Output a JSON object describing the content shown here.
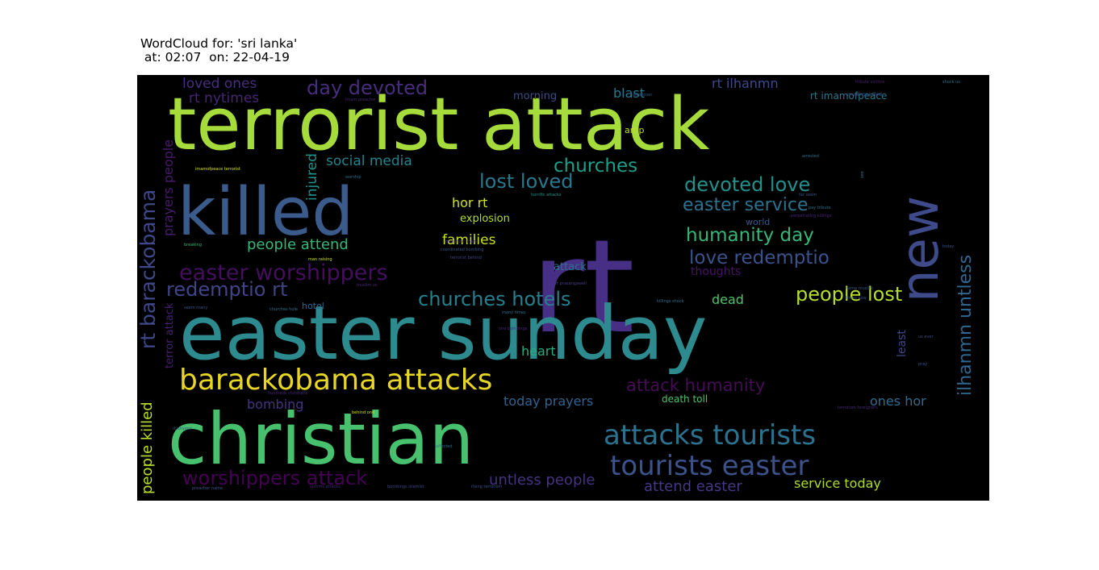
{
  "title_line1": "WordCloud for: 'sri lanka'",
  "title_line2": " at: 02:07  on: 22-04-19",
  "chart_data": {
    "type": "wordcloud",
    "background": "#000000",
    "words": [
      {
        "text": "terrorist attack",
        "color": "#a6db3c",
        "weight": 100
      },
      {
        "text": "rt",
        "color": "#482f86",
        "weight": 98
      },
      {
        "text": "easter sunday",
        "color": "#2d8a8e",
        "weight": 92
      },
      {
        "text": "christian",
        "color": "#47c16e",
        "weight": 85
      },
      {
        "text": "killed",
        "color": "#3b5b8d",
        "weight": 80
      },
      {
        "text": "new",
        "color": "#3e4a89",
        "weight": 70
      },
      {
        "text": "barackobama attacks",
        "color": "#e8d624",
        "weight": 45
      },
      {
        "text": "attacks tourists",
        "color": "#2c728e",
        "weight": 42
      },
      {
        "text": "tourists easter",
        "color": "#3b528b",
        "weight": 40
      },
      {
        "text": "easter worshippers",
        "color": "#440f5c",
        "weight": 38
      },
      {
        "text": "rt barackobama",
        "color": "#3f4889",
        "weight": 34
      },
      {
        "text": "ilhanmn untless",
        "color": "#31668e",
        "weight": 30
      },
      {
        "text": "worshippers attack",
        "color": "#440154",
        "weight": 28
      },
      {
        "text": "churches hotels",
        "color": "#277f8e",
        "weight": 28
      },
      {
        "text": "devoted love",
        "color": "#21918c",
        "weight": 27
      },
      {
        "text": "lost loved",
        "color": "#2a788e",
        "weight": 27
      },
      {
        "text": "people lost",
        "color": "#b5de2b",
        "weight": 26
      },
      {
        "text": "day devoted",
        "color": "#472d7b",
        "weight": 26
      },
      {
        "text": "redemptio rt",
        "color": "#414487",
        "weight": 26
      },
      {
        "text": "churches",
        "color": "#1f9e89",
        "weight": 24
      },
      {
        "text": "humanity day",
        "color": "#35b779",
        "weight": 24
      },
      {
        "text": "love redemptio",
        "color": "#3b528b",
        "weight": 24
      },
      {
        "text": "easter service",
        "color": "#2c728e",
        "weight": 23
      },
      {
        "text": "attack humanity",
        "color": "#450d54",
        "weight": 22
      },
      {
        "text": "people attend",
        "color": "#35b779",
        "weight": 20
      },
      {
        "text": "people killed",
        "color": "#b8de29",
        "weight": 20
      },
      {
        "text": "untless people",
        "color": "#46327e",
        "weight": 19
      },
      {
        "text": "attend easter",
        "color": "#443983",
        "weight": 19
      },
      {
        "text": "loved ones",
        "color": "#472f7d",
        "weight": 17
      },
      {
        "text": "social media",
        "color": "#26828e",
        "weight": 17
      },
      {
        "text": "families",
        "color": "#cae11f",
        "weight": 17
      },
      {
        "text": "rt nytimes",
        "color": "#482575",
        "weight": 17
      },
      {
        "text": "injured",
        "color": "#1f968b",
        "weight": 17
      },
      {
        "text": "rt ilhanmn",
        "color": "#3e4989",
        "weight": 16
      },
      {
        "text": "prayers people",
        "color": "#481b6d",
        "weight": 16
      },
      {
        "text": "service today",
        "color": "#addc30",
        "weight": 16
      },
      {
        "text": "today prayers",
        "color": "#33638d",
        "weight": 16
      },
      {
        "text": "blast",
        "color": "#2a768e",
        "weight": 16
      },
      {
        "text": "hor rt",
        "color": "#d2e21b",
        "weight": 15
      },
      {
        "text": "bombing",
        "color": "#463480",
        "weight": 15
      },
      {
        "text": "heart",
        "color": "#27ad81",
        "weight": 15
      },
      {
        "text": "dead",
        "color": "#4ec36b",
        "weight": 15
      },
      {
        "text": "ones hor",
        "color": "#2f6c8e",
        "weight": 15
      },
      {
        "text": "least",
        "color": "#3f4788",
        "weight": 14
      },
      {
        "text": "thoughts",
        "color": "#471365",
        "weight": 14
      },
      {
        "text": "terror attack",
        "color": "#481f70",
        "weight": 13
      },
      {
        "text": "explosion",
        "color": "#addc30",
        "weight": 13
      },
      {
        "text": "attack",
        "color": "#2c718e",
        "weight": 13
      },
      {
        "text": "morning",
        "color": "#3d4d8a",
        "weight": 13
      },
      {
        "text": "death toll",
        "color": "#4ac16d",
        "weight": 12
      },
      {
        "text": "rt imamofpeace",
        "color": "#2a768e",
        "weight": 12
      },
      {
        "text": "hotel",
        "color": "#31678e",
        "weight": 11
      },
      {
        "text": "amp",
        "color": "#bddf26",
        "weight": 11
      },
      {
        "text": "world",
        "color": "#375b8d",
        "weight": 11
      },
      {
        "text": "muslims killed",
        "color": "#3a548c",
        "weight": 6
      },
      {
        "text": "tribute victims",
        "color": "#482173",
        "weight": 5
      },
      {
        "text": "shock us",
        "color": "#2d718e",
        "weight": 5
      },
      {
        "text": "imam preacher",
        "color": "#482576",
        "weight": 5
      },
      {
        "text": "wife lover",
        "color": "#3a548c",
        "weight": 5
      },
      {
        "text": "imamofpeace terrorist",
        "color": "#d5e21a",
        "weight": 5
      },
      {
        "text": "worship",
        "color": "#2e6e8e",
        "weight": 5
      },
      {
        "text": "breaking",
        "color": "#35b779",
        "weight": 5
      },
      {
        "text": "horrific attacks",
        "color": "#1f998a",
        "weight": 5
      },
      {
        "text": "far seem",
        "color": "#3b528b",
        "weight": 5
      },
      {
        "text": "perpetrating killings",
        "color": "#482878",
        "weight": 5
      },
      {
        "text": "pay tribute",
        "color": "#2d708e",
        "weight": 5
      },
      {
        "text": "arrested",
        "color": "#2e6e8e",
        "weight": 5
      },
      {
        "text": "see",
        "color": "#2a788e",
        "weight": 5
      },
      {
        "text": "mckenzie imam",
        "color": "#482878",
        "weight": 5
      },
      {
        "text": "coordinated bombing",
        "color": "#3b528b",
        "weight": 5
      },
      {
        "text": "terrorist behind",
        "color": "#3f4788",
        "weight": 5
      },
      {
        "text": "man raising",
        "color": "#cde11d",
        "weight": 5
      },
      {
        "text": "rt prasangaweli",
        "color": "#433e85",
        "weight": 5
      },
      {
        "text": "muslim us",
        "color": "#482878",
        "weight": 5
      },
      {
        "text": "seem many",
        "color": "#3b528b",
        "weight": 5
      },
      {
        "text": "churches hole",
        "color": "#2d708e",
        "weight": 5
      },
      {
        "text": "killings shock",
        "color": "#2d708e",
        "weight": 5
      },
      {
        "text": "many times",
        "color": "#2d708e",
        "weight": 5
      },
      {
        "text": "one bombings",
        "color": "#482878",
        "weight": 5
      },
      {
        "text": "hundreds christians",
        "color": "#482878",
        "weight": 5
      },
      {
        "text": "behind one",
        "color": "#d5e21a",
        "weight": 5
      },
      {
        "text": "affected",
        "color": "#2e6e8e",
        "weight": 5
      },
      {
        "text": "preacher name",
        "color": "#3b528b",
        "weight": 5
      },
      {
        "text": "victims attacks",
        "color": "#482878",
        "weight": 5
      },
      {
        "text": "bombings islamist",
        "color": "#3f4788",
        "weight": 5
      },
      {
        "text": "rising terrorism",
        "color": "#3b528b",
        "weight": 5
      },
      {
        "text": "terrorism foreigners",
        "color": "#482878",
        "weight": 5
      },
      {
        "text": "pray",
        "color": "#3b528b",
        "weight": 5
      },
      {
        "text": "us ever",
        "color": "#3f4788",
        "weight": 5
      },
      {
        "text": "name muslim",
        "color": "#3b528b",
        "weight": 5
      },
      {
        "text": "times now",
        "color": "#3b528b",
        "weight": 5
      },
      {
        "text": "today",
        "color": "#3b528b",
        "weight": 5
      },
      {
        "text": "rt anyone",
        "color": "#3b528b",
        "weight": 5
      }
    ]
  }
}
